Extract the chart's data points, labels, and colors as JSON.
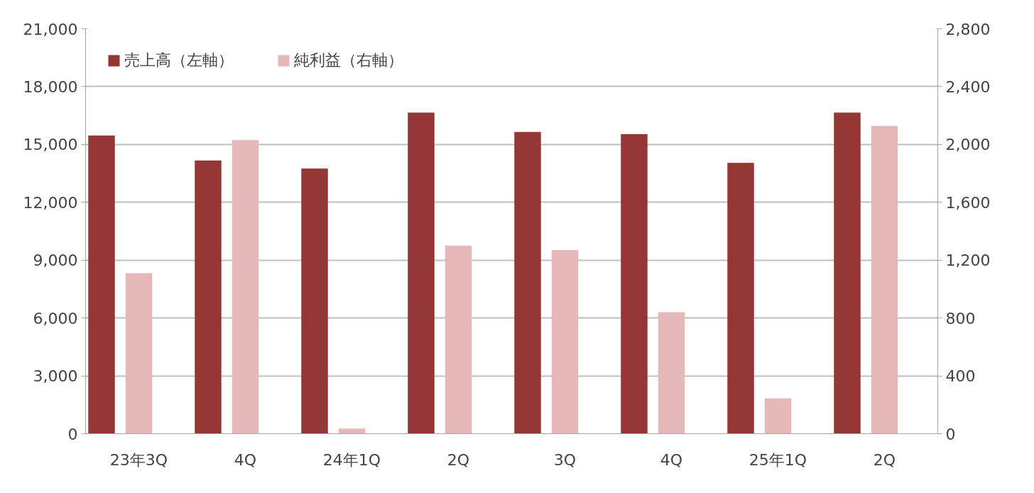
{
  "chart_data": {
    "type": "bar",
    "categories": [
      "23年3Q",
      "4Q",
      "24年1Q",
      "2Q",
      "3Q",
      "4Q",
      "25年1Q",
      "2Q"
    ],
    "series": [
      {
        "name": "売上高（左軸）",
        "color": "#943634",
        "values": [
          15460,
          14170,
          13750,
          16650,
          15650,
          15540,
          14050,
          16650
        ]
      },
      {
        "name": "純利益（右軸）",
        "color": "#e6b9b8",
        "axis": "y2",
        "values": [
          1110,
          2030,
          36,
          1300,
          1270,
          840,
          244,
          2128
        ]
      }
    ],
    "ylim": [
      0,
      21000
    ],
    "yticks": [
      {
        "value": 0,
        "label": "0"
      },
      {
        "value": 3000,
        "label": "3,000"
      },
      {
        "value": 6000,
        "label": "6,000"
      },
      {
        "value": 9000,
        "label": "9,000"
      },
      {
        "value": 12000,
        "label": "12,000"
      },
      {
        "value": 15000,
        "label": "15,000"
      },
      {
        "value": 18000,
        "label": "18,000"
      },
      {
        "value": 21000,
        "label": "21,000"
      }
    ],
    "y2lim": [
      0,
      2800
    ],
    "y2ticks": [
      {
        "value": 0,
        "label": "0"
      },
      {
        "value": 400,
        "label": "400"
      },
      {
        "value": 800,
        "label": "800"
      },
      {
        "value": 1200,
        "label": "1,200"
      },
      {
        "value": 1600,
        "label": "1,600"
      },
      {
        "value": 2000,
        "label": "2,000"
      },
      {
        "value": 2400,
        "label": "2,400"
      },
      {
        "value": 2800,
        "label": "2,800"
      }
    ],
    "grid": "y",
    "legend": "top left"
  }
}
